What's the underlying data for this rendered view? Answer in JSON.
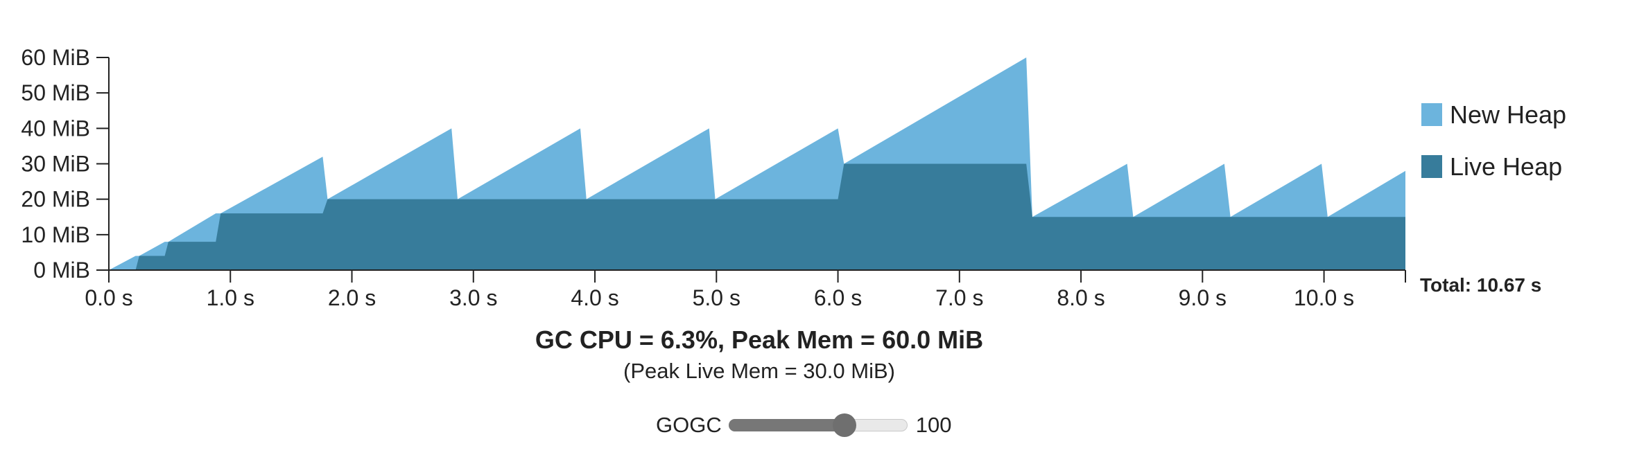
{
  "chart_data": {
    "type": "area",
    "x_unit": "s",
    "y_unit": "MiB",
    "xlim": [
      0,
      10.67
    ],
    "ylim": [
      0,
      60
    ],
    "x_ticks": [
      "0.0 s",
      "1.0 s",
      "2.0 s",
      "3.0 s",
      "4.0 s",
      "5.0 s",
      "6.0 s",
      "7.0 s",
      "8.0 s",
      "9.0 s",
      "10.0 s"
    ],
    "x_tick_values": [
      0,
      1,
      2,
      3,
      4,
      5,
      6,
      7,
      8,
      9,
      10
    ],
    "y_ticks": [
      "0 MiB",
      "10 MiB",
      "20 MiB",
      "30 MiB",
      "40 MiB",
      "50 MiB",
      "60 MiB"
    ],
    "y_tick_values": [
      0,
      10,
      20,
      30,
      40,
      50,
      60
    ],
    "legend": {
      "position": "right"
    },
    "series": [
      {
        "name": "New Heap",
        "color": "#6cb4dd",
        "x": [
          0,
          0.22,
          0.25,
          0.46,
          0.49,
          0.88,
          0.92,
          1.76,
          1.8,
          2.82,
          2.87,
          3.88,
          3.93,
          4.94,
          4.99,
          6.0,
          6.05,
          7.55,
          7.6,
          8.38,
          8.43,
          9.18,
          9.23,
          9.98,
          10.03,
          10.67
        ],
        "values": [
          0,
          4,
          4,
          8,
          8,
          16,
          16,
          32,
          20,
          40,
          20,
          40,
          20,
          40,
          20,
          40,
          30,
          60,
          15,
          30,
          15,
          30,
          15,
          30,
          15,
          28
        ]
      },
      {
        "name": "Live Heap",
        "color": "#377c9b",
        "x": [
          0,
          0.22,
          0.25,
          0.46,
          0.49,
          0.88,
          0.92,
          1.76,
          1.8,
          2.82,
          2.87,
          3.88,
          3.93,
          4.94,
          4.99,
          6.0,
          6.05,
          7.55,
          7.6,
          8.38,
          8.43,
          9.18,
          9.23,
          9.98,
          10.03,
          10.67
        ],
        "values": [
          0,
          0,
          4,
          4,
          8,
          8,
          16,
          16,
          20,
          20,
          20,
          20,
          20,
          20,
          20,
          20,
          30,
          30,
          15,
          15,
          15,
          15,
          15,
          15,
          15,
          15
        ]
      }
    ],
    "total_label": "Total: 10.67 s"
  },
  "caption": {
    "main": "GC CPU = 6.3%, Peak Mem = 60.0 MiB",
    "sub": "(Peak Live Mem = 30.0 MiB)"
  },
  "control": {
    "label": "GOGC",
    "value": "100",
    "slider_fraction": 0.65
  }
}
